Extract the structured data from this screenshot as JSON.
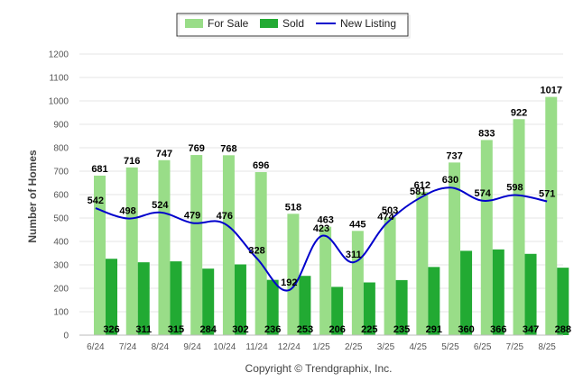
{
  "chart_data": {
    "type": "bar",
    "categories": [
      "6/24",
      "7/24",
      "8/24",
      "9/24",
      "10/24",
      "11/24",
      "12/24",
      "1/25",
      "2/25",
      "3/25",
      "4/25",
      "5/25",
      "6/25",
      "7/25",
      "8/25"
    ],
    "series": [
      {
        "name": "For Sale",
        "type": "bar",
        "color": "#99dd88",
        "values": [
          681,
          716,
          747,
          769,
          768,
          696,
          518,
          463,
          445,
          503,
          612,
          737,
          833,
          922,
          1017
        ]
      },
      {
        "name": "Sold",
        "type": "bar",
        "color": "#22aa33",
        "values": [
          326,
          311,
          315,
          284,
          302,
          236,
          253,
          206,
          225,
          235,
          291,
          360,
          366,
          347,
          288
        ]
      },
      {
        "name": "New Listing",
        "type": "line",
        "color": "#0000cc",
        "values": [
          542,
          498,
          524,
          479,
          476,
          328,
          192,
          423,
          311,
          474,
          581,
          630,
          574,
          598,
          571
        ]
      }
    ],
    "title": "",
    "xlabel": "",
    "ylabel": "Number of Homes",
    "ylim": [
      0,
      1200
    ],
    "yticks": [
      0,
      100,
      200,
      300,
      400,
      500,
      600,
      700,
      800,
      900,
      1000,
      1100,
      1200
    ],
    "grid": true,
    "legend": "top-center",
    "credit": "Copyright © Trendgraphix, Inc."
  }
}
